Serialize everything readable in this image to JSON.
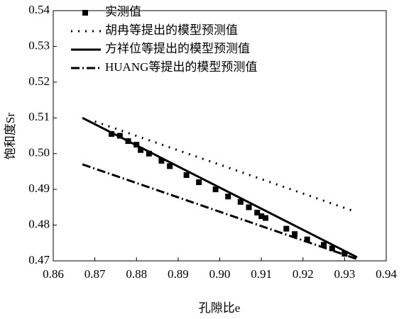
{
  "chart_data": {
    "type": "line",
    "x_label": "孔隙比e",
    "y_label": "饱和度Sr",
    "xlim": [
      0.86,
      0.94
    ],
    "xticks": [
      0.86,
      0.87,
      0.88,
      0.89,
      {
        "value": 0.9,
        "label": "0.90"
      },
      0.91,
      0.92,
      0.93,
      0.94
    ],
    "ylim": [
      0.47,
      0.54
    ],
    "yticks": [
      0.47,
      0.48,
      0.49,
      {
        "value": 0.5,
        "label": "0.50"
      },
      0.51,
      0.52,
      0.53,
      0.54
    ],
    "legend": "upper left",
    "series": [
      {
        "name": "实测值",
        "color": "#000000",
        "style": "square",
        "x": [
          0.874,
          0.876,
          0.878,
          0.88,
          0.881,
          0.883,
          0.886,
          0.888,
          0.892,
          0.895,
          0.899,
          0.902,
          0.905,
          0.907,
          0.909,
          0.91,
          0.911,
          0.916,
          0.918,
          0.921,
          0.925,
          0.927,
          0.93
        ],
        "values": [
          0.5055,
          0.505,
          0.5035,
          0.5025,
          0.501,
          0.5,
          0.498,
          0.4965,
          0.494,
          0.492,
          0.49,
          0.488,
          0.4865,
          0.485,
          0.4835,
          0.4825,
          0.482,
          0.479,
          0.4775,
          0.476,
          0.4745,
          0.4735,
          0.472
        ]
      },
      {
        "name": "胡冉等提出的模型预测值",
        "color": "#000000",
        "style": "dotted",
        "x": [
          0.87,
          0.932
        ],
        "values": [
          0.509,
          0.484
        ]
      },
      {
        "name": "方祥位等提出的模型预测值",
        "color": "#000000",
        "style": "solid",
        "x": [
          0.867,
          0.933
        ],
        "values": [
          0.51,
          0.471
        ]
      },
      {
        "name": "HUANG等提出的模型预测值",
        "color": "#000000",
        "style": "dashdot",
        "x": [
          0.867,
          0.933
        ],
        "values": [
          0.497,
          0.4705
        ]
      }
    ]
  }
}
